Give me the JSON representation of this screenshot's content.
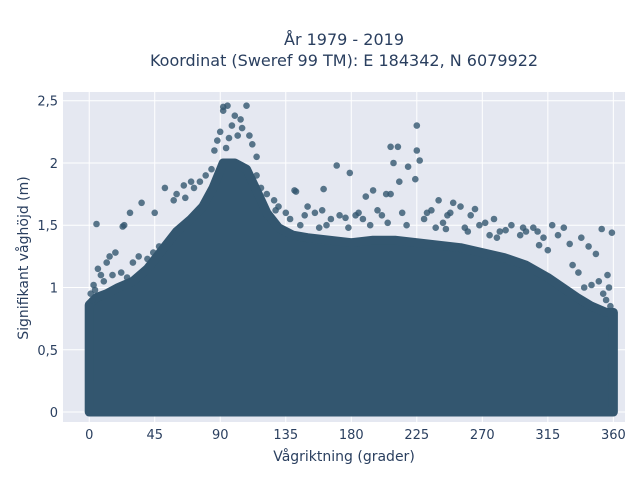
{
  "chart_data": {
    "type": "scatter",
    "title_line1": "År 1979 - 2019",
    "title_line2": "Koordinat (Sweref 99 TM): E 184342, N 6079922",
    "xlabel": "Vågriktning (grader)",
    "ylabel": "Signifikant våghöjd (m)",
    "xlim": [
      -18,
      368
    ],
    "ylim": [
      -0.08,
      2.57
    ],
    "xticks": [
      0,
      45,
      90,
      135,
      180,
      225,
      270,
      315,
      360
    ],
    "xtick_labels": [
      "0",
      "45",
      "90",
      "135",
      "180",
      "225",
      "270",
      "315",
      "360"
    ],
    "yticks": [
      0,
      0.5,
      1,
      1.5,
      2,
      2.5
    ],
    "ytick_labels": [
      "0",
      "0,5",
      "1",
      "1,5",
      "2",
      "2,5"
    ],
    "grid": true,
    "marker_color": "#33566f",
    "background_color": "#e5e8f1",
    "series": [
      {
        "points": [
          [
            92,
            2.45
          ],
          [
            95,
            2.46
          ],
          [
            108,
            2.46
          ],
          [
            92,
            2.42
          ],
          [
            100,
            2.38
          ],
          [
            104,
            2.35
          ],
          [
            98,
            2.3
          ],
          [
            105,
            2.28
          ],
          [
            90,
            2.25
          ],
          [
            102,
            2.22
          ],
          [
            110,
            2.22
          ],
          [
            96,
            2.2
          ],
          [
            88,
            2.18
          ],
          [
            112,
            2.15
          ],
          [
            94,
            2.12
          ],
          [
            86,
            2.1
          ],
          [
            115,
            2.05
          ],
          [
            225,
            2.3
          ],
          [
            207,
            2.13
          ],
          [
            212,
            2.13
          ],
          [
            225,
            2.1
          ],
          [
            209,
            2.0
          ],
          [
            227,
            2.02
          ],
          [
            170,
            1.98
          ],
          [
            179,
            1.92
          ],
          [
            219,
            1.97
          ],
          [
            213,
            1.85
          ],
          [
            224,
            1.87
          ],
          [
            161,
            1.79
          ],
          [
            195,
            1.78
          ],
          [
            190,
            1.73
          ],
          [
            207,
            1.75
          ],
          [
            204,
            1.75
          ],
          [
            142,
            1.77
          ],
          [
            141,
            1.78
          ],
          [
            127,
            1.7
          ],
          [
            36,
            1.68
          ],
          [
            45,
            1.6
          ],
          [
            28,
            1.6
          ],
          [
            24,
            1.5
          ],
          [
            23,
            1.49
          ],
          [
            5,
            1.51
          ],
          [
            52,
            1.8
          ],
          [
            60,
            1.75
          ],
          [
            65,
            1.82
          ],
          [
            70,
            1.85
          ],
          [
            66,
            1.72
          ],
          [
            58,
            1.7
          ],
          [
            265,
            1.63
          ],
          [
            255,
            1.65
          ],
          [
            240,
            1.7
          ],
          [
            250,
            1.68
          ],
          [
            235,
            1.62
          ],
          [
            248,
            1.6
          ],
          [
            278,
            1.55
          ],
          [
            290,
            1.5
          ],
          [
            300,
            1.45
          ],
          [
            305,
            1.48
          ],
          [
            318,
            1.5
          ],
          [
            326,
            1.48
          ],
          [
            338,
            1.4
          ],
          [
            343,
            1.33
          ],
          [
            348,
            1.27
          ],
          [
            352,
            1.47
          ],
          [
            359,
            1.44
          ],
          [
            356,
            1.1
          ],
          [
            350,
            1.05
          ],
          [
            345,
            1.02
          ],
          [
            340,
            1.0
          ],
          [
            8,
            1.1
          ],
          [
            6,
            1.15
          ],
          [
            12,
            1.2
          ],
          [
            18,
            1.28
          ],
          [
            14,
            1.25
          ],
          [
            30,
            1.2
          ],
          [
            34,
            1.25
          ],
          [
            40,
            1.23
          ],
          [
            44,
            1.28
          ],
          [
            48,
            1.33
          ],
          [
            150,
            1.65
          ],
          [
            155,
            1.6
          ],
          [
            160,
            1.62
          ],
          [
            166,
            1.55
          ],
          [
            172,
            1.58
          ],
          [
            185,
            1.6
          ],
          [
            188,
            1.55
          ],
          [
            198,
            1.62
          ],
          [
            201,
            1.58
          ],
          [
            215,
            1.6
          ],
          [
            230,
            1.55
          ],
          [
            243,
            1.52
          ],
          [
            258,
            1.48
          ],
          [
            268,
            1.5
          ],
          [
            282,
            1.45
          ],
          [
            296,
            1.42
          ],
          [
            312,
            1.4
          ],
          [
            330,
            1.35
          ],
          [
            135,
            1.6
          ],
          [
            130,
            1.65
          ],
          [
            122,
            1.75
          ],
          [
            118,
            1.8
          ],
          [
            115,
            1.9
          ],
          [
            80,
            1.9
          ],
          [
            84,
            1.95
          ],
          [
            76,
            1.85
          ],
          [
            72,
            1.8
          ],
          [
            128,
            1.62
          ],
          [
            148,
            1.58
          ],
          [
            176,
            1.56
          ],
          [
            183,
            1.58
          ],
          [
            232,
            1.6
          ],
          [
            246,
            1.58
          ],
          [
            262,
            1.58
          ],
          [
            272,
            1.52
          ],
          [
            286,
            1.46
          ],
          [
            298,
            1.48
          ],
          [
            308,
            1.45
          ],
          [
            322,
            1.42
          ],
          [
            2,
            0.9
          ],
          [
            1,
            0.95
          ],
          [
            3,
            1.02
          ],
          [
            4,
            0.98
          ],
          [
            10,
            1.05
          ],
          [
            16,
            1.1
          ],
          [
            22,
            1.12
          ],
          [
            26,
            1.08
          ],
          [
            353,
            0.95
          ],
          [
            357,
            1.0
          ],
          [
            355,
            0.9
          ],
          [
            358,
            0.85
          ],
          [
            360,
            0.8
          ],
          [
            336,
            1.12
          ],
          [
            332,
            1.18
          ],
          [
            315,
            1.3
          ],
          [
            309,
            1.34
          ],
          [
            280,
            1.4
          ],
          [
            275,
            1.42
          ],
          [
            260,
            1.45
          ],
          [
            245,
            1.47
          ],
          [
            238,
            1.48
          ],
          [
            218,
            1.5
          ],
          [
            205,
            1.52
          ],
          [
            193,
            1.5
          ],
          [
            178,
            1.48
          ],
          [
            163,
            1.5
          ],
          [
            158,
            1.48
          ],
          [
            145,
            1.5
          ],
          [
            138,
            1.55
          ]
        ]
      }
    ]
  }
}
